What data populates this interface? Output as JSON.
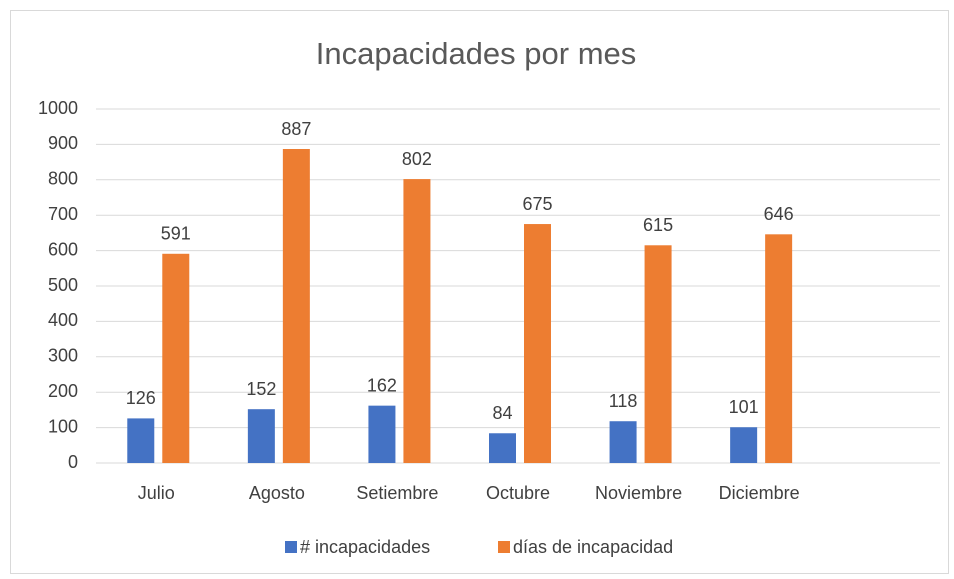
{
  "chart_data": {
    "type": "bar",
    "title": "Incapacidades por mes",
    "categories": [
      "Julio",
      "Agosto",
      "Setiembre",
      "Octubre",
      "Noviembre",
      "Diciembre",
      null
    ],
    "series": [
      {
        "name": "# incapacidades",
        "color": "#4472c4",
        "values": [
          126,
          152,
          162,
          84,
          118,
          101,
          null
        ]
      },
      {
        "name": "días de incapacidad",
        "color": "#ed7d31",
        "values": [
          591,
          887,
          802,
          675,
          615,
          646,
          null
        ]
      }
    ],
    "ylim": [
      0,
      1000
    ],
    "yticks": [
      0,
      100,
      200,
      300,
      400,
      500,
      600,
      700,
      800,
      900,
      1000
    ],
    "grid": true,
    "legend": "bottom"
  }
}
